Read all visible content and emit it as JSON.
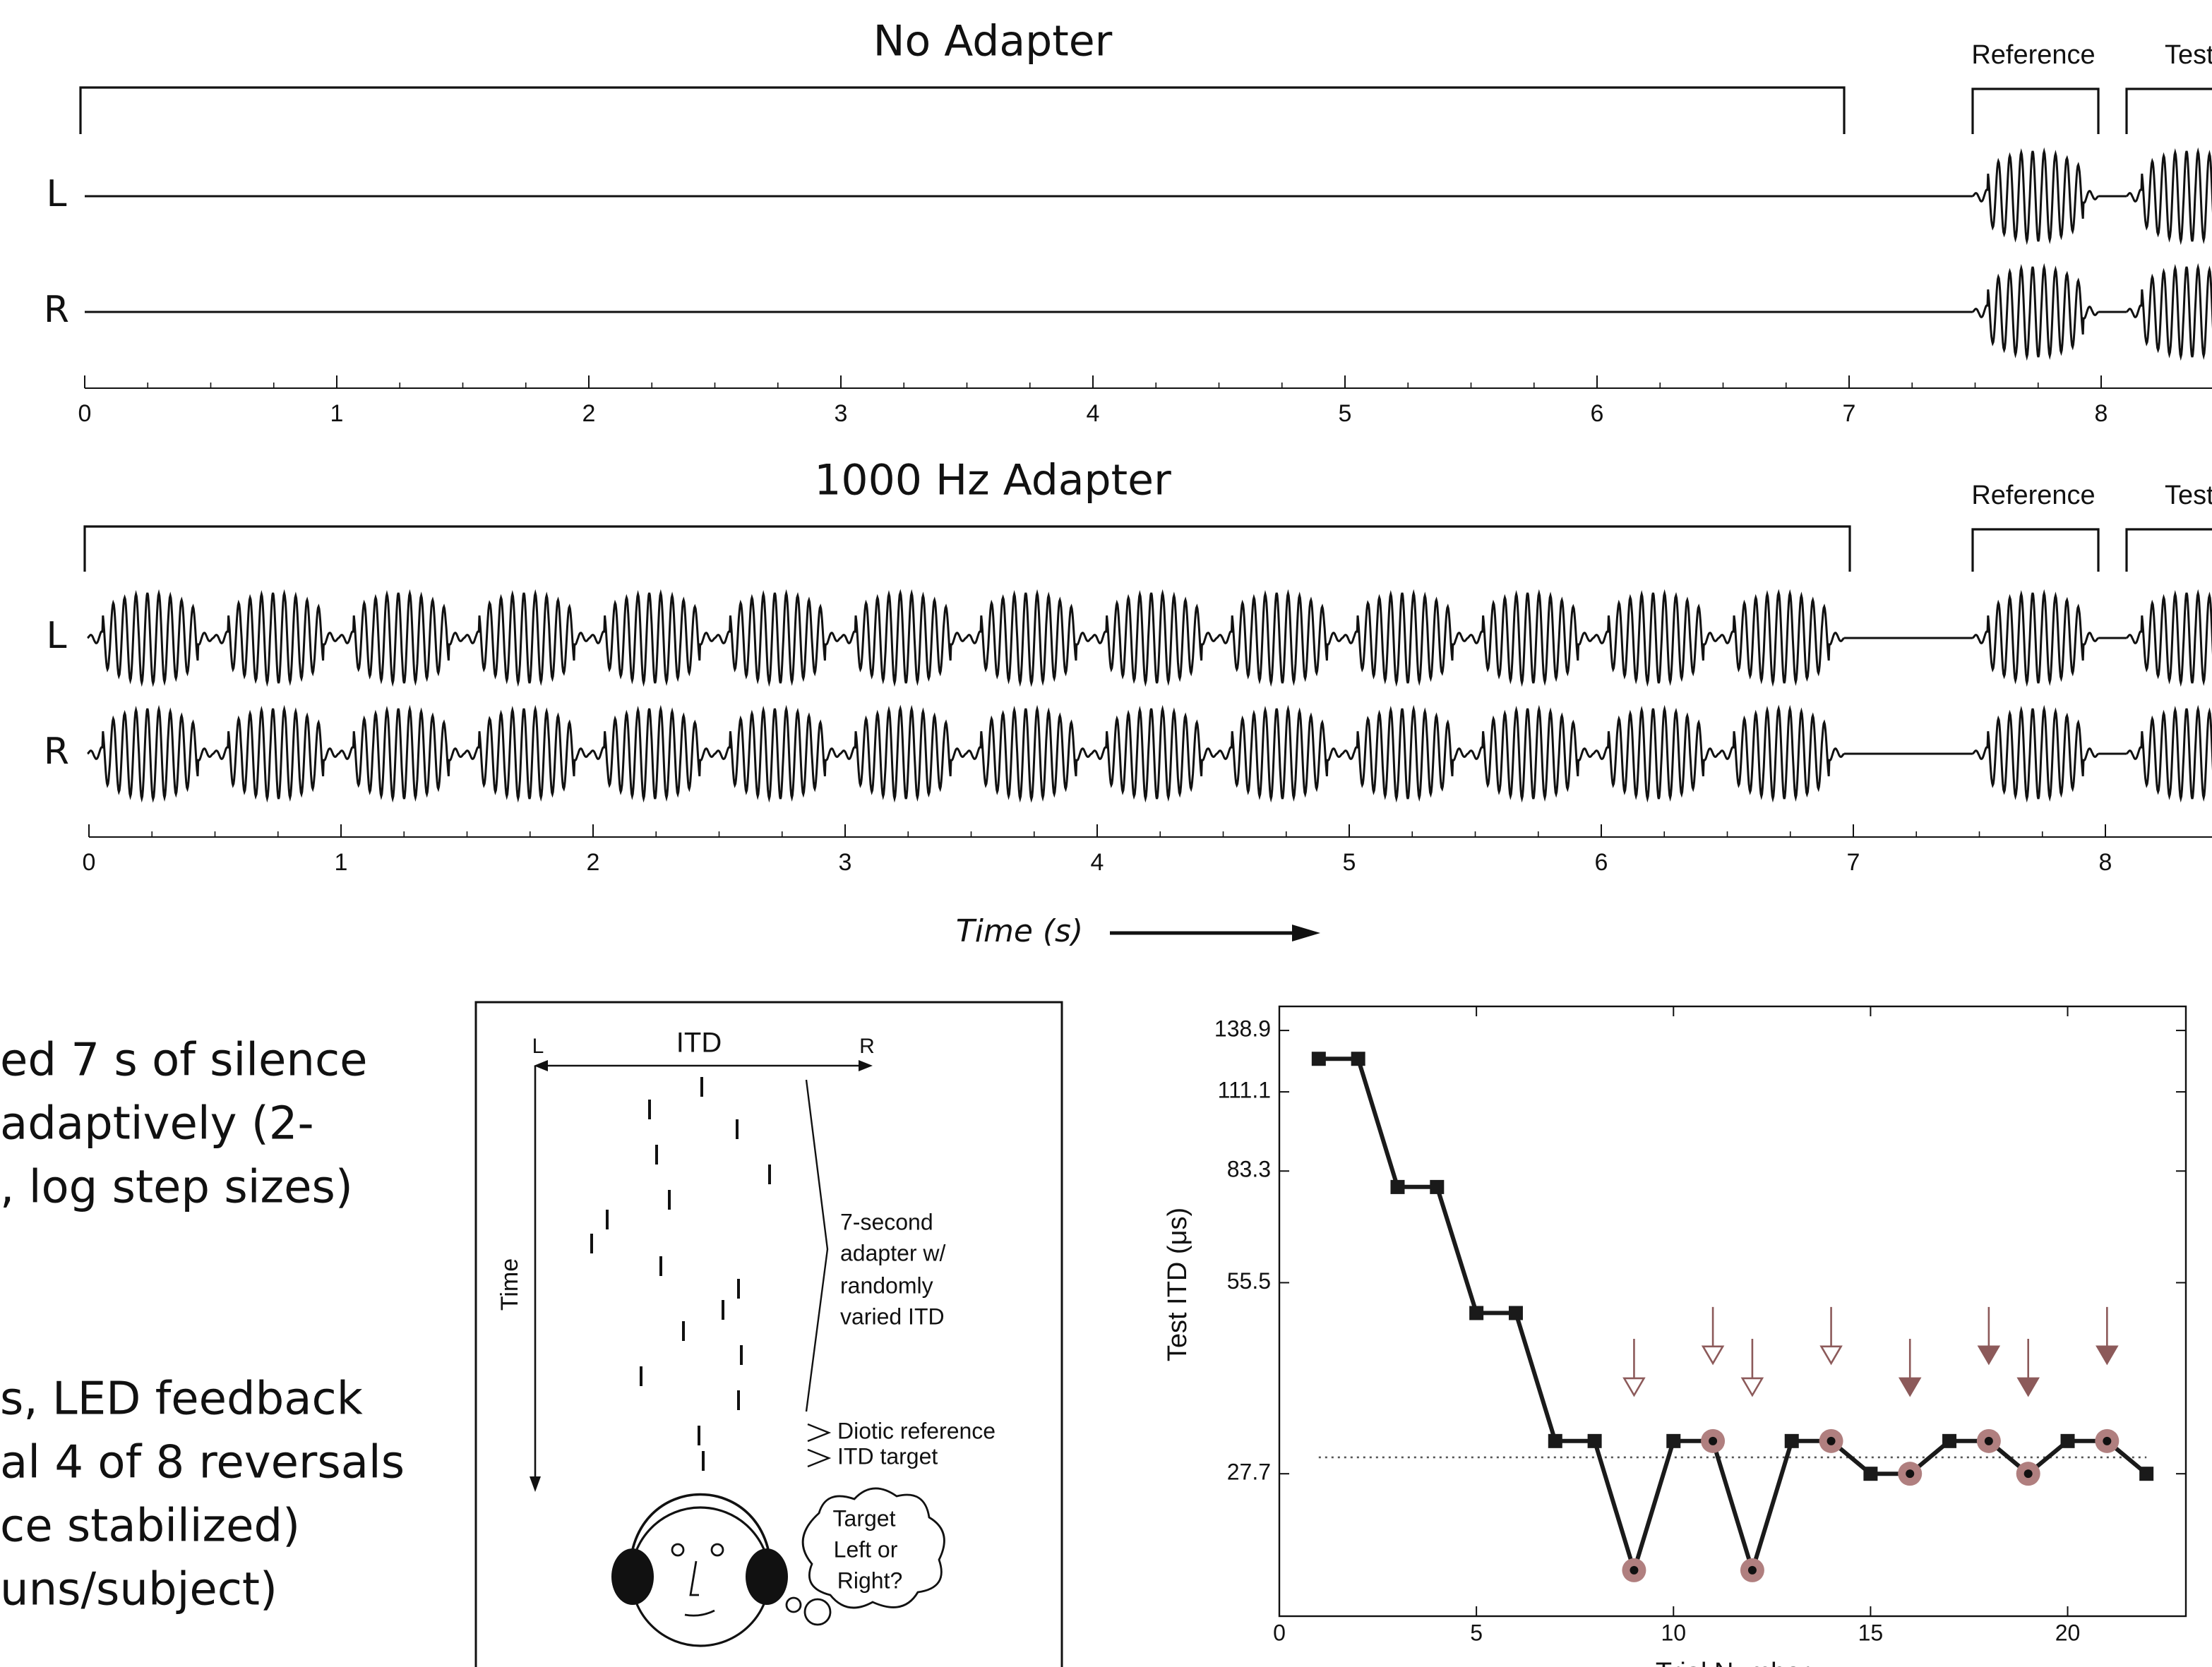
{
  "panels": [
    {
      "title": "No Adapter",
      "reference": "Reference",
      "test": "Test",
      "channels": [
        "L",
        "R"
      ],
      "xticks": [
        0,
        1,
        2,
        3,
        4,
        5,
        6,
        7,
        8
      ]
    },
    {
      "title": "1000 Hz Adapter",
      "reference": "Reference",
      "test": "Test",
      "channels": [
        "L",
        "R"
      ],
      "xticks": [
        0,
        1,
        2,
        3,
        4,
        5,
        6,
        7,
        8
      ]
    }
  ],
  "time_axis_label": "Time (s)",
  "text_fragments": [
    "ed 7 s of silence",
    "adaptively (2-",
    ", log step sizes)",
    "s, LED feedback",
    "al 4 of 8 reversals",
    "ce stabilized)",
    "uns/subject)"
  ],
  "diagram": {
    "left": "L",
    "itd": "ITD",
    "right": "R",
    "time": "Time",
    "adapter_note": [
      "7-second",
      "adapter w/",
      "randomly",
      "varied ITD"
    ],
    "reference_note": "Diotic reference",
    "target_note": "ITD target",
    "bubble": [
      "Target",
      "Left or",
      "Right?"
    ]
  },
  "chart_data": {
    "type": "line",
    "y_label": "Test ITD (μs)",
    "x_label": "Trial Number",
    "x": [
      1,
      2,
      3,
      4,
      5,
      6,
      7,
      8,
      9,
      10,
      11,
      12,
      13,
      14,
      15,
      16,
      17,
      18,
      19,
      20,
      21,
      22
    ],
    "series": [
      {
        "color": "#1a1a1a",
        "values": [
          125.3,
          125.3,
          78.6,
          78.6,
          49.7,
          49.7,
          31.2,
          31.2,
          19.5,
          31.2,
          31.2,
          19.5,
          31.2,
          31.2,
          27.7,
          27.7,
          31.2,
          31.2,
          27.7,
          31.2,
          31.2,
          27.7
        ]
      }
    ],
    "reversals": [
      9,
      11,
      12,
      14,
      16,
      18,
      19,
      21
    ],
    "reversal_color": "#b07f7f",
    "open_arrows": [
      9,
      11,
      12,
      14
    ],
    "filled_arrows": [
      16,
      18,
      19,
      21
    ],
    "arrow_color": "#8c5a5a",
    "threshold": 29.4,
    "log_y": true,
    "xlim": [
      0,
      23
    ],
    "ylim": [
      16.5,
      151.6
    ],
    "xticks": [
      0,
      5,
      10,
      15,
      20
    ],
    "yticks": [
      27.7,
      55.5,
      83.3,
      111.1,
      138.9
    ]
  }
}
